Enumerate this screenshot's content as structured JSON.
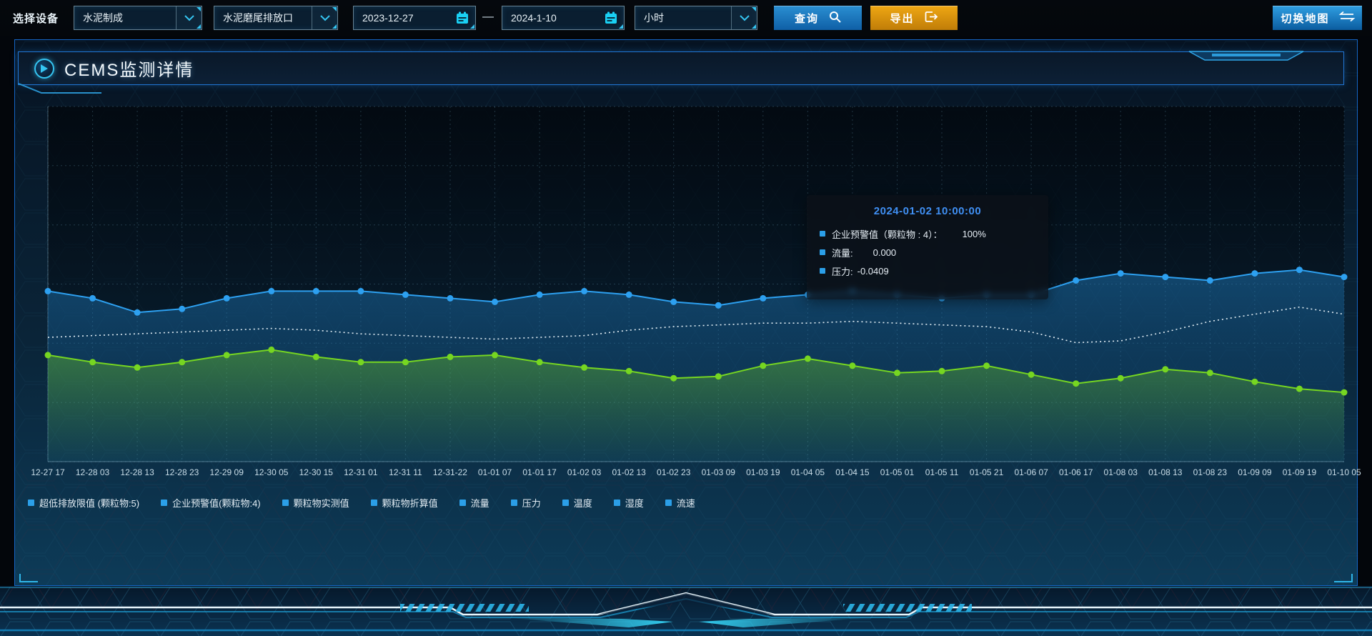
{
  "toolbar": {
    "label": "选择设备",
    "device_select": {
      "value": "水泥制成"
    },
    "outlet_select": {
      "value": "水泥磨尾排放口"
    },
    "date_start": "2023-12-27",
    "date_separator": "—",
    "date_end": "2024-1-10",
    "interval_select": {
      "value": "小时"
    },
    "query_button": "查询",
    "export_button": "导出",
    "switch_map_button": "切换地图"
  },
  "panel": {
    "title": "CEMS监测详情"
  },
  "tooltip": {
    "title": "2024-01-02 10:00:00",
    "rows": [
      {
        "label": "企业预警值（颗粒物 : 4）：",
        "value": "100%"
      },
      {
        "label": "流量:",
        "value": "0.000"
      },
      {
        "label": "压力:",
        "value": "-0.0409"
      }
    ]
  },
  "legend": {
    "marker_color": "#2b9fe8",
    "items": [
      "超低排放限值 (颗粒物:5)",
      "企业预警值(颗粒物:4)",
      "颗粒物实测值",
      "颗粒物折算值",
      "流量",
      "压力",
      "温度",
      "湿度",
      "流速"
    ]
  },
  "chart_data": {
    "type": "line",
    "title": "",
    "xlabel": "",
    "ylabel": "",
    "y_axis": "hidden",
    "grid": true,
    "legend_position": "bottom",
    "x": [
      "12-27 17",
      "12-28 03",
      "12-28 13",
      "12-28 23",
      "12-29 09",
      "12-30 05",
      "12-30 15",
      "12-31 01",
      "12-31 11",
      "12-31-22",
      "01-01 07",
      "01-01 17",
      "01-02 03",
      "01-02 13",
      "01-02 23",
      "01-03 09",
      "01-03 19",
      "01-04 05",
      "01-04 15",
      "01-05 01",
      "01-05 11",
      "01-05 21",
      "01-06 07",
      "01-06 17",
      "01-08 03",
      "01-08 13",
      "01-08 23",
      "01-09 09",
      "01-09 19",
      "01-10 05"
    ],
    "y_unit": "percent-of-plot-height (no y-axis ticks visible)",
    "series": [
      {
        "name": "企业预警值(颗粒物:4)",
        "color": "#2da0f0",
        "style": "solid-dots-area",
        "values": [
          48,
          46,
          42,
          43,
          46,
          48,
          48,
          48,
          47,
          46,
          45,
          47,
          48,
          47,
          45,
          44,
          46,
          47,
          48,
          47,
          46,
          47,
          47,
          51,
          53,
          52,
          51,
          53,
          54,
          52
        ]
      },
      {
        "name": "压力",
        "color": "#e2eef5",
        "style": "dotted",
        "values": [
          35,
          35.5,
          36,
          36.5,
          37,
          37.5,
          37,
          36,
          35.5,
          35,
          34.5,
          35,
          35.5,
          37,
          38,
          38.5,
          39,
          39,
          39.5,
          39,
          38.5,
          38,
          36.5,
          33.5,
          34,
          36.5,
          39.5,
          41.5,
          43.5,
          41.5
        ]
      },
      {
        "name": "流量",
        "color": "#76d621",
        "style": "solid-dots-area",
        "values": [
          30,
          28,
          26.5,
          28,
          30,
          31.5,
          29.5,
          28,
          28,
          29.5,
          30,
          28,
          26.5,
          25.5,
          23.5,
          24,
          27,
          29,
          27,
          25,
          25.5,
          27,
          24.5,
          22,
          23.5,
          26,
          25,
          22.5,
          20.5,
          19.5
        ]
      }
    ]
  },
  "colors": {
    "accent_cyan": "#35c5f2",
    "panel_border": "#1566c6",
    "button_blue": "#1f86cf",
    "button_orange": "#e49a12",
    "tooltip_title": "#4090f4",
    "chart_blue": "#2da0f0",
    "chart_green": "#76d621",
    "chart_dotted": "#e2eef5"
  }
}
